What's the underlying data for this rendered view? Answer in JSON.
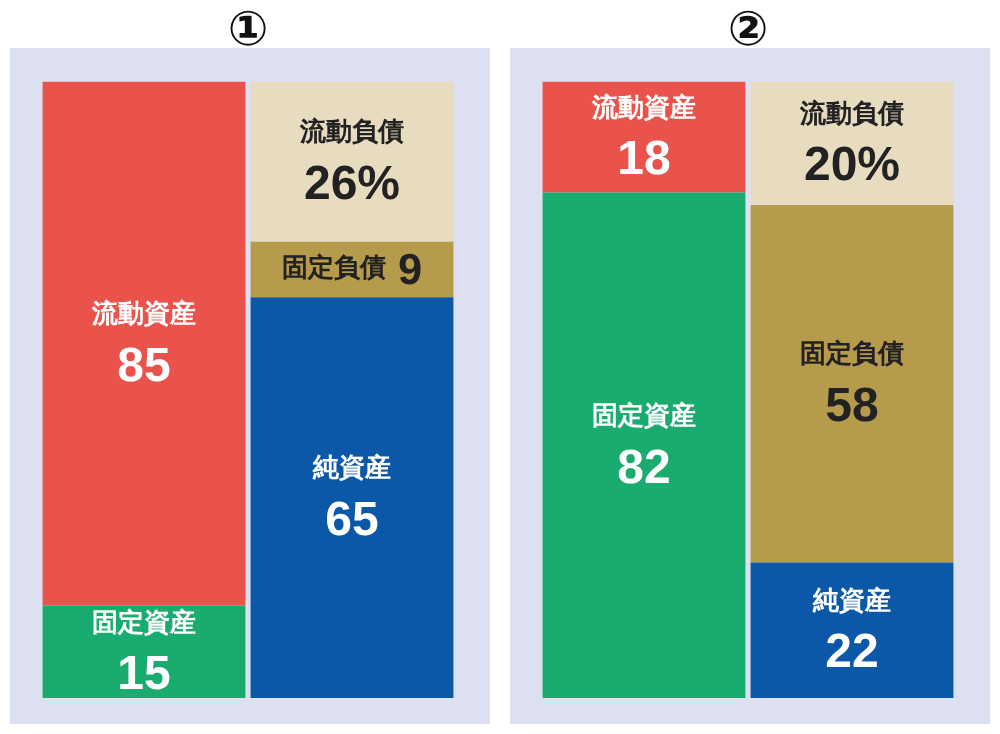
{
  "chart_data": [
    {
      "type": "bar",
      "title": "①",
      "stacked": true,
      "categories": [
        null,
        null
      ],
      "ylim": [
        0,
        100
      ],
      "tick_labels": false,
      "legend": false,
      "series": [
        {
          "name": "固定資産",
          "color": "#1aab6f",
          "values": [
            15,
            null
          ],
          "value_labels": [
            "15",
            null
          ]
        },
        {
          "name": "流動資産",
          "color": "#e9534b",
          "values": [
            85,
            null
          ],
          "value_labels": [
            "85",
            null
          ]
        },
        {
          "name": "純資産",
          "color": "#0b58a8",
          "values": [
            null,
            65
          ],
          "value_labels": [
            null,
            "65"
          ]
        },
        {
          "name": "固定負債",
          "color": "#b69b4c",
          "values": [
            null,
            9
          ],
          "value_labels": [
            null,
            "9"
          ]
        },
        {
          "name": "流動負債",
          "color": "#e7dcc0",
          "values": [
            null,
            26
          ],
          "value_labels": [
            null,
            "26%"
          ]
        }
      ]
    },
    {
      "type": "bar",
      "title": "②",
      "stacked": true,
      "categories": [
        null,
        null
      ],
      "ylim": [
        0,
        100
      ],
      "tick_labels": false,
      "legend": false,
      "series": [
        {
          "name": "固定資産",
          "color": "#1aab6f",
          "values": [
            82,
            null
          ],
          "value_labels": [
            "82",
            null
          ]
        },
        {
          "name": "流動資産",
          "color": "#e9534b",
          "values": [
            18,
            null
          ],
          "value_labels": [
            "18",
            null
          ]
        },
        {
          "name": "純資産",
          "color": "#0b58a8",
          "values": [
            null,
            22
          ],
          "value_labels": [
            null,
            "22"
          ]
        },
        {
          "name": "固定負債",
          "color": "#b69b4c",
          "values": [
            null,
            58
          ],
          "value_labels": [
            null,
            "58"
          ]
        },
        {
          "name": "流動負債",
          "color": "#e7dcc0",
          "values": [
            null,
            20
          ],
          "value_labels": [
            null,
            "20%"
          ]
        }
      ]
    }
  ]
}
